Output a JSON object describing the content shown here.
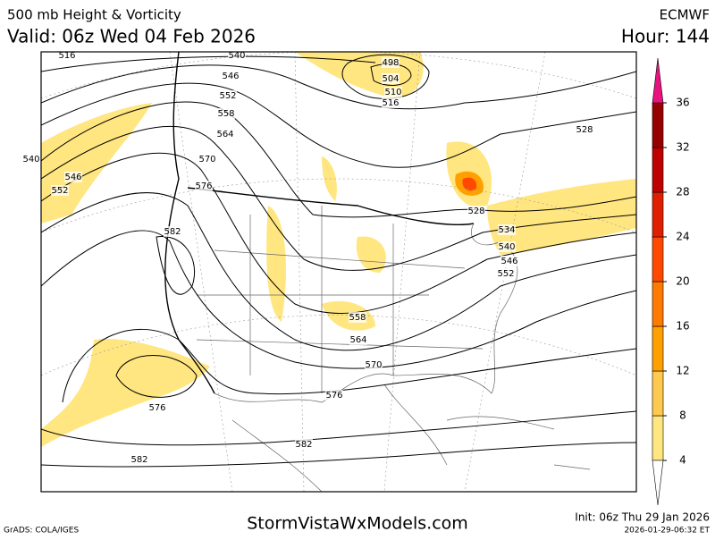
{
  "header": {
    "title": "500 mb Height & Vorticity",
    "model": "ECMWF",
    "valid": "Valid: 06z Wed 04 Feb 2026",
    "hour": "Hour: 144"
  },
  "map": {
    "contour_labels": [
      "516",
      "540",
      "546",
      "552",
      "558",
      "564",
      "570",
      "576",
      "582",
      "540",
      "546",
      "552",
      "498",
      "504",
      "510",
      "516",
      "528",
      "528",
      "534",
      "540",
      "546",
      "552",
      "558",
      "564",
      "570",
      "576",
      "576",
      "582",
      "582"
    ]
  },
  "colorbar": {
    "levels": [
      4,
      8,
      12,
      16,
      20,
      24,
      28,
      32,
      36
    ],
    "colors": [
      "#ffe680",
      "#ffc84f",
      "#ffa000",
      "#ff7a00",
      "#ff4800",
      "#e01e00",
      "#be0000",
      "#960000"
    ],
    "over_color": "#e8137f",
    "under_color": "#ffffff"
  },
  "footer": {
    "credit": "GrADS: COLA/IGES",
    "site": "StormVistaWxModels.com",
    "init": "Init: 06z Thu 29 Jan 2026",
    "stamp": "2026-01-29-06:32 ET"
  }
}
